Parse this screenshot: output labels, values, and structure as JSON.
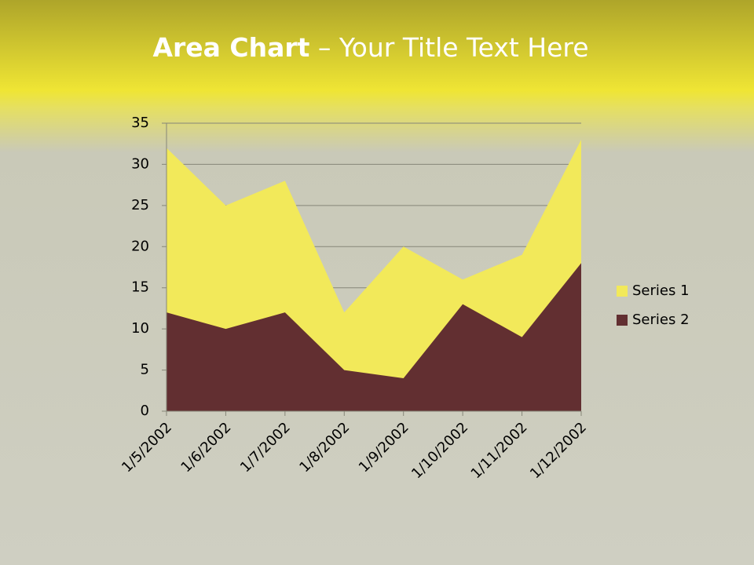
{
  "chart_data": {
    "type": "area",
    "title_bold": "Area Chart",
    "title_rest": "– Your Title Text Here",
    "categories": [
      "1/5/2002",
      "1/6/2002",
      "1/7/2002",
      "1/8/2002",
      "1/9/2002",
      "1/10/2002",
      "1/11/2002",
      "1/12/2002"
    ],
    "series": [
      {
        "name": "Series 1",
        "color": "#f2e95a",
        "values": [
          32,
          25,
          28,
          12,
          20,
          16,
          19,
          33
        ]
      },
      {
        "name": "Series 2",
        "color": "#622f31",
        "values": [
          12,
          10,
          12,
          5,
          4,
          13,
          9,
          18
        ]
      }
    ],
    "ylim": [
      0,
      35
    ],
    "yticks": [
      0,
      5,
      10,
      15,
      20,
      25,
      30,
      35
    ],
    "grid": true,
    "legend": "right"
  }
}
